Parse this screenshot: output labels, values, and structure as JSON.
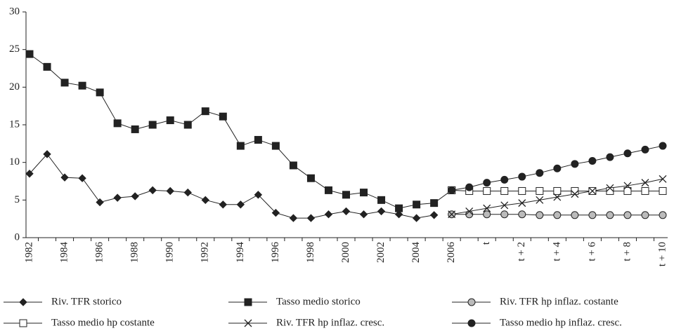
{
  "chart_data": {
    "type": "line",
    "categories": [
      "1982",
      null,
      "1984",
      null,
      "1986",
      null,
      "1988",
      null,
      "1990",
      null,
      "1992",
      null,
      "1994",
      null,
      "1996",
      null,
      "1998",
      null,
      "2000",
      null,
      "2002",
      null,
      "2004",
      null,
      "2006",
      null,
      "t",
      null,
      "t + 2",
      null,
      "t + 4",
      null,
      "t + 6",
      null,
      "t + 8",
      null,
      "t + 10"
    ],
    "ylim": [
      0,
      30
    ],
    "yticks": [
      0,
      5,
      10,
      15,
      20,
      25,
      30
    ],
    "series": [
      {
        "name": "Riv. TFR storico",
        "color": "#222222",
        "marker": "diamond",
        "values": [
          8.5,
          11.1,
          8.0,
          7.9,
          4.7,
          5.3,
          5.5,
          6.3,
          6.2,
          6.0,
          5.0,
          4.4,
          4.4,
          5.7,
          3.3,
          2.6,
          2.6,
          3.1,
          3.5,
          3.1,
          3.5,
          3.1,
          2.6,
          3.0,
          null,
          null,
          null,
          null,
          null,
          null,
          null,
          null,
          null,
          null,
          null,
          null,
          null
        ]
      },
      {
        "name": "Tasso medio storico",
        "color": "#222222",
        "marker": "square",
        "values": [
          24.4,
          22.7,
          20.6,
          20.2,
          19.3,
          15.2,
          14.4,
          15.0,
          15.6,
          15.0,
          16.8,
          16.1,
          12.2,
          13.0,
          12.2,
          9.6,
          7.9,
          6.3,
          5.7,
          6.0,
          5.0,
          3.9,
          4.4,
          4.6,
          6.3,
          null,
          null,
          null,
          null,
          null,
          null,
          null,
          null,
          null,
          null,
          null,
          null
        ]
      },
      {
        "name": "Riv. TFR hp inflaz. costante",
        "color": "#bbbbbb",
        "marker": "circle",
        "values": [
          null,
          null,
          null,
          null,
          null,
          null,
          null,
          null,
          null,
          null,
          null,
          null,
          null,
          null,
          null,
          null,
          null,
          null,
          null,
          null,
          null,
          null,
          null,
          null,
          3.1,
          3.1,
          3.1,
          3.1,
          3.1,
          3.0,
          3.0,
          3.0,
          3.0,
          3.0,
          3.0,
          3.0,
          3.0
        ]
      },
      {
        "name": "Tasso medio hp costante",
        "color": "#ffffff",
        "marker": "square",
        "values": [
          null,
          null,
          null,
          null,
          null,
          null,
          null,
          null,
          null,
          null,
          null,
          null,
          null,
          null,
          null,
          null,
          null,
          null,
          null,
          null,
          null,
          null,
          null,
          null,
          6.3,
          6.2,
          6.2,
          6.2,
          6.2,
          6.2,
          6.2,
          6.2,
          6.2,
          6.2,
          6.2,
          6.2,
          6.2
        ]
      },
      {
        "name": "Riv. TFR hp inflaz. cresc.",
        "color": "#222222",
        "marker": "x",
        "values": [
          null,
          null,
          null,
          null,
          null,
          null,
          null,
          null,
          null,
          null,
          null,
          null,
          null,
          null,
          null,
          null,
          null,
          null,
          null,
          null,
          null,
          null,
          null,
          null,
          3.1,
          3.5,
          3.9,
          4.3,
          4.6,
          5.0,
          5.4,
          5.8,
          6.2,
          6.6,
          6.9,
          7.3,
          7.8
        ]
      },
      {
        "name": "Tasso medio hp inflaz. cresc.",
        "color": "#222222",
        "marker": "circle",
        "values": [
          null,
          null,
          null,
          null,
          null,
          null,
          null,
          null,
          null,
          null,
          null,
          null,
          null,
          null,
          null,
          null,
          null,
          null,
          null,
          null,
          null,
          null,
          null,
          null,
          6.3,
          6.7,
          7.3,
          7.7,
          8.1,
          8.6,
          9.2,
          9.8,
          10.2,
          10.7,
          11.2,
          11.7,
          12.2
        ]
      }
    ]
  }
}
